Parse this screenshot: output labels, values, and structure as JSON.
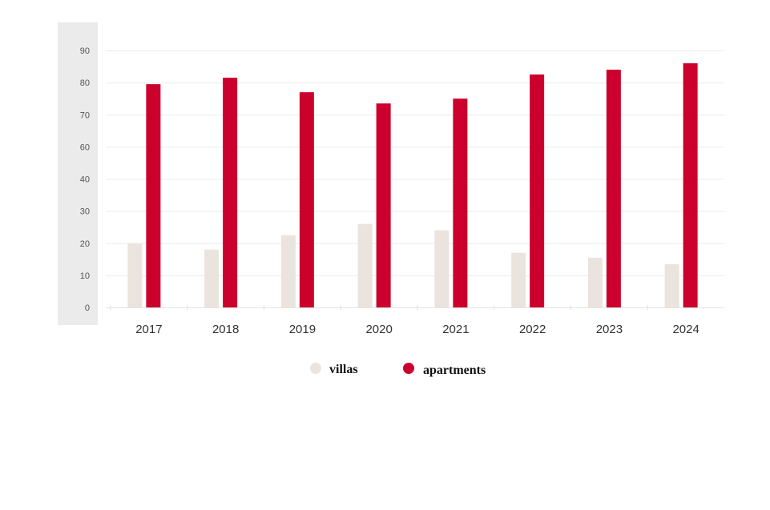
{
  "chart_data": {
    "type": "bar",
    "title": "",
    "xlabel": "",
    "ylabel": "",
    "categories": [
      "2017",
      "2018",
      "2019",
      "2020",
      "2021",
      "2022",
      "2023",
      "2024"
    ],
    "y_ticks": [
      "0",
      "10",
      "20",
      "30",
      "40",
      "60",
      "70",
      "80",
      "90"
    ],
    "ylim": [
      0,
      90
    ],
    "grid": true,
    "legend_position": "bottom-center",
    "series": [
      {
        "name": "villas",
        "color": "#ebe4de",
        "values": [
          20,
          18,
          22.5,
          26,
          24,
          17,
          15.5,
          13.5
        ]
      },
      {
        "name": "apartments",
        "color": "#cc002c",
        "values": [
          79.5,
          81.5,
          77,
          73.5,
          75,
          82.5,
          84,
          86
        ]
      }
    ],
    "colors": {
      "axis_panel": "#ebebeb",
      "grid": "#ececec"
    }
  }
}
